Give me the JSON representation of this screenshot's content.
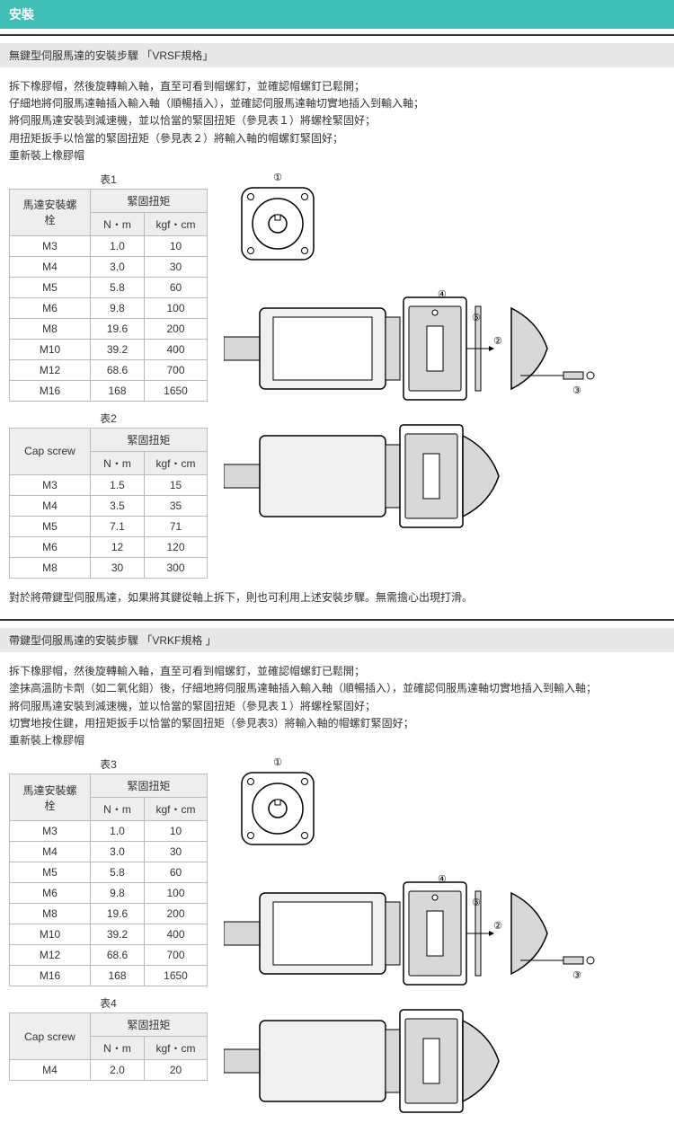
{
  "header": "安裝",
  "section1_title": "無鍵型伺服馬達的安裝步驟 「VRSF規格」",
  "instr1": [
    "拆下橡膠帽，然後旋轉輸入軸，直至可看到帽螺釘，並確認帽螺釘已鬆開；",
    "仔細地將伺服馬達軸插入輸入軸（順暢插入），並確認伺服馬達軸切實地插入到輸入軸；",
    "將伺服馬達安裝到減速機，並以恰當的緊固扭矩（參見表１）將螺栓緊固好；",
    "用扭矩扳手以恰當的緊固扭矩（參見表２）將輸入軸的帽螺釘緊固好；",
    "重新裝上橡膠帽"
  ],
  "table1_title": "表1",
  "table2_title": "表2",
  "col_motor": "馬達安裝螺栓",
  "col_torque": "緊固扭矩",
  "col_nm": "N・m",
  "col_kgf": "kgf・cm",
  "col_cap": "Cap screw",
  "t1_rows": [
    [
      "M3",
      "1.0",
      "10"
    ],
    [
      "M4",
      "3.0",
      "30"
    ],
    [
      "M5",
      "5.8",
      "60"
    ],
    [
      "M6",
      "9.8",
      "100"
    ],
    [
      "M8",
      "19.6",
      "200"
    ],
    [
      "M10",
      "39.2",
      "400"
    ],
    [
      "M12",
      "68.6",
      "700"
    ],
    [
      "M16",
      "168",
      "1650"
    ]
  ],
  "t2_rows": [
    [
      "M3",
      "1.5",
      "15"
    ],
    [
      "M4",
      "3.5",
      "35"
    ],
    [
      "M5",
      "7.1",
      "71"
    ],
    [
      "M6",
      "12",
      "120"
    ],
    [
      "M8",
      "30",
      "300"
    ]
  ],
  "note1": "對於將帶鍵型伺服馬達，如果將其鍵從軸上拆下，則也可利用上述安裝步驟。無需擔心出現打滑。",
  "section2_title": "帶鍵型伺服馬達的安裝步驟 「VRKF規格 」",
  "instr2": [
    "拆下橡膠帽，然後旋轉輸入軸，直至可看到帽螺釘，並確認帽螺釘已鬆開；",
    "塗抹高溫防卡劑（如二氧化鉬）後，仔細地將伺服馬達軸插入輸入軸（順暢插入），並確認伺服馬達軸切實地插入到輸入軸；",
    "將伺服馬達安裝到減速機，並以恰當的緊固扭矩（參見表１）將螺栓緊固好；",
    "切實地按住鍵，用扭矩扳手以恰當的緊固扭矩（參見表3）將輸入軸的帽螺釘緊固好；",
    "重新裝上橡膠帽"
  ],
  "table3_title": "表3",
  "table4_title": "表4",
  "t3_rows": [
    [
      "M3",
      "1.0",
      "10"
    ],
    [
      "M4",
      "3.0",
      "30"
    ],
    [
      "M5",
      "5.8",
      "60"
    ],
    [
      "M6",
      "9.8",
      "100"
    ],
    [
      "M8",
      "19.6",
      "200"
    ],
    [
      "M10",
      "39.2",
      "400"
    ],
    [
      "M12",
      "68.6",
      "700"
    ],
    [
      "M16",
      "168",
      "1650"
    ]
  ],
  "t4_rows": [
    [
      "M4",
      "2.0",
      "20"
    ]
  ],
  "diagram_colors": {
    "stroke": "#000",
    "fill_light": "#fff",
    "fill_grey": "#d8d8d8",
    "fill_dgrey": "#a8a8a8"
  }
}
